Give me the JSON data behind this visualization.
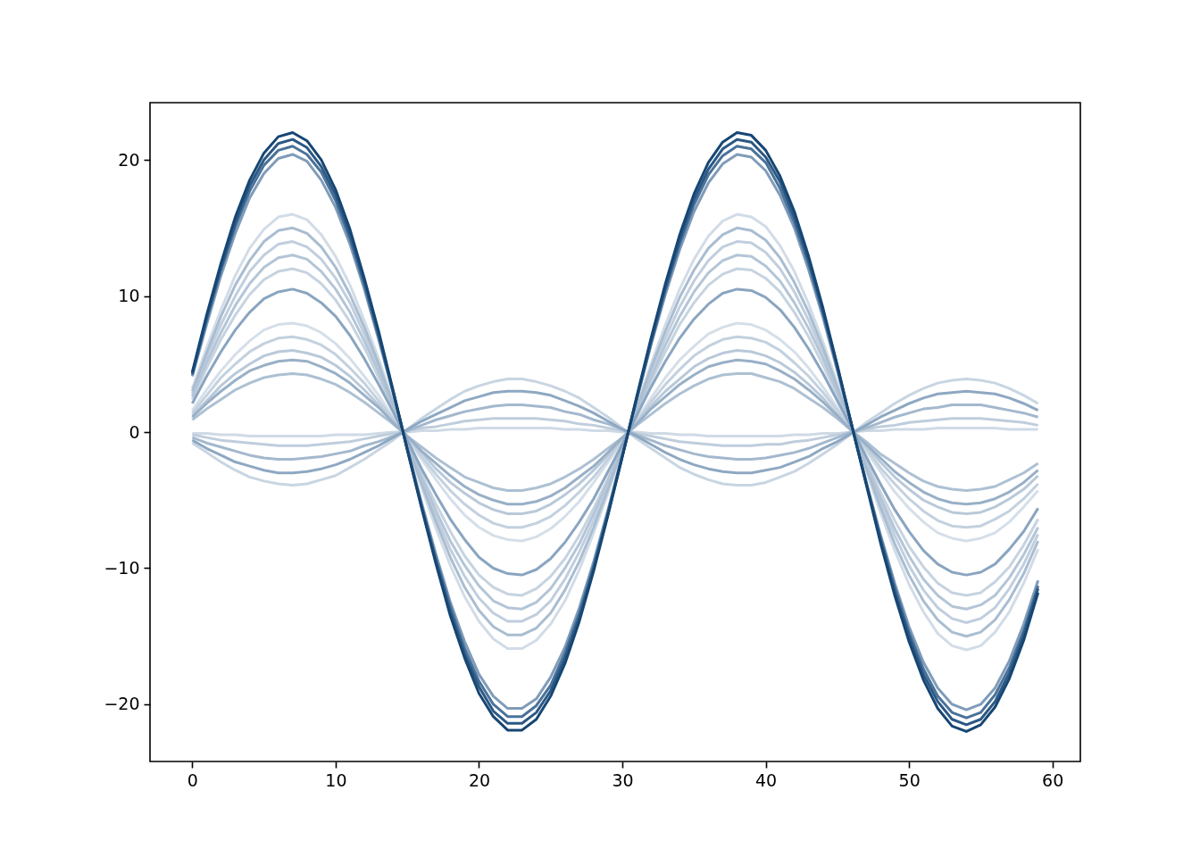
{
  "chart_data": {
    "type": "line",
    "x": [
      0,
      1,
      2,
      3,
      4,
      5,
      6,
      7,
      8,
      9,
      10,
      11,
      12,
      13,
      14,
      15,
      16,
      17,
      18,
      19,
      20,
      21,
      22,
      23,
      24,
      25,
      26,
      27,
      28,
      29,
      30,
      31,
      32,
      33,
      34,
      35,
      36,
      37,
      38,
      39,
      40,
      41,
      42,
      43,
      44,
      45,
      46,
      47,
      48,
      49,
      50,
      51,
      52,
      53,
      54,
      55,
      56,
      57,
      58,
      59
    ],
    "xlim": [
      -2.95,
      61.95
    ],
    "ylim": [
      -24.2,
      24.2
    ],
    "xticks": [
      0,
      10,
      20,
      30,
      40,
      50,
      60
    ],
    "yticks": [
      -20,
      -10,
      0,
      10,
      20
    ],
    "grid": false,
    "series": [
      {
        "color": "#cfdae5",
        "values": [
          -0.1,
          -0.1,
          -0.2,
          -0.2,
          -0.3,
          -0.3,
          -0.3,
          -0.3,
          -0.3,
          -0.3,
          -0.2,
          -0.2,
          -0.2,
          -0.1,
          0.0,
          0.0,
          0.1,
          0.1,
          0.2,
          0.2,
          0.3,
          0.3,
          0.3,
          0.3,
          0.3,
          0.3,
          0.2,
          0.2,
          0.1,
          0.1,
          0.0,
          0.0,
          -0.1,
          -0.1,
          -0.2,
          -0.2,
          -0.3,
          -0.3,
          -0.3,
          -0.3,
          -0.3,
          -0.3,
          -0.2,
          -0.2,
          -0.1,
          -0.1,
          0.0,
          0.1,
          0.1,
          0.2,
          0.2,
          0.2,
          0.3,
          0.3,
          0.3,
          0.3,
          0.3,
          0.2,
          0.2,
          0.2
        ]
      },
      {
        "color": "#bfcddc",
        "values": [
          -0.2,
          -0.4,
          -0.6,
          -0.7,
          -0.8,
          -0.9,
          -1.0,
          -1.0,
          -1.0,
          -0.9,
          -0.8,
          -0.7,
          -0.5,
          -0.3,
          -0.1,
          0.1,
          0.3,
          0.4,
          0.6,
          0.8,
          0.9,
          1.0,
          1.0,
          1.0,
          1.0,
          0.9,
          0.8,
          0.6,
          0.5,
          0.3,
          0.1,
          -0.1,
          -0.3,
          -0.5,
          -0.7,
          -0.8,
          -0.9,
          -1.0,
          -1.0,
          -1.0,
          -0.9,
          -0.9,
          -0.7,
          -0.6,
          -0.4,
          -0.2,
          0.0,
          0.2,
          0.4,
          0.5,
          0.7,
          0.8,
          0.9,
          1.0,
          1.0,
          1.0,
          0.9,
          0.8,
          0.7,
          0.5
        ]
      },
      {
        "color": "#c8d5e2",
        "values": [
          -0.8,
          -1.5,
          -2.2,
          -2.8,
          -3.3,
          -3.6,
          -3.8,
          -3.9,
          -3.8,
          -3.5,
          -3.2,
          -2.6,
          -2.0,
          -1.3,
          -0.6,
          0.2,
          1.0,
          1.7,
          2.4,
          3.0,
          3.4,
          3.7,
          3.9,
          3.9,
          3.7,
          3.4,
          3.0,
          2.5,
          1.8,
          1.1,
          0.3,
          -0.5,
          -1.2,
          -1.9,
          -2.6,
          -3.1,
          -3.5,
          -3.8,
          -3.9,
          -3.9,
          -3.7,
          -3.3,
          -2.9,
          -2.3,
          -1.6,
          -0.9,
          -0.1,
          0.7,
          1.4,
          2.1,
          2.7,
          3.2,
          3.6,
          3.8,
          3.9,
          3.8,
          3.6,
          3.2,
          2.7,
          2.1
        ]
      },
      {
        "color": "#a3b8cd",
        "values": [
          -0.4,
          -0.8,
          -1.1,
          -1.4,
          -1.7,
          -1.9,
          -2.0,
          -2.0,
          -1.9,
          -1.8,
          -1.6,
          -1.4,
          -1.0,
          -0.7,
          -0.3,
          0.1,
          0.5,
          0.9,
          1.2,
          1.5,
          1.7,
          1.9,
          2.0,
          2.0,
          1.9,
          1.8,
          1.5,
          1.3,
          0.9,
          0.6,
          0.2,
          -0.2,
          -0.6,
          -1.0,
          -1.3,
          -1.6,
          -1.8,
          -1.9,
          -2.0,
          -2.0,
          -1.9,
          -1.7,
          -1.5,
          -1.2,
          -0.8,
          -0.4,
          0.0,
          0.3,
          0.7,
          1.1,
          1.4,
          1.7,
          1.8,
          2.0,
          2.0,
          2.0,
          1.8,
          1.6,
          1.4,
          1.1
        ]
      },
      {
        "color": "#8ea8c2",
        "values": [
          -0.6,
          -1.2,
          -1.7,
          -2.2,
          -2.5,
          -2.8,
          -3.0,
          -3.0,
          -2.9,
          -2.7,
          -2.4,
          -2.0,
          -1.5,
          -1.0,
          -0.4,
          0.2,
          0.8,
          1.3,
          1.8,
          2.3,
          2.6,
          2.9,
          3.0,
          3.0,
          2.9,
          2.7,
          2.3,
          1.9,
          1.4,
          0.8,
          0.2,
          -0.3,
          -0.9,
          -1.5,
          -2.0,
          -2.4,
          -2.7,
          -2.9,
          -3.0,
          -3.0,
          -2.8,
          -2.6,
          -2.2,
          -1.8,
          -1.2,
          -0.7,
          -0.1,
          0.5,
          1.1,
          1.6,
          2.1,
          2.5,
          2.8,
          2.9,
          3.0,
          2.9,
          2.8,
          2.5,
          2.1,
          1.6
        ]
      },
      {
        "color": "#d5dfe9",
        "values": [
          1.6,
          3.1,
          4.5,
          5.7,
          6.7,
          7.5,
          7.9,
          8.0,
          7.8,
          7.3,
          6.5,
          5.4,
          4.1,
          2.7,
          1.1,
          -0.5,
          -2.0,
          -3.5,
          -4.9,
          -6.1,
          -7.0,
          -7.6,
          -7.9,
          -8.0,
          -7.7,
          -7.1,
          -6.2,
          -5.1,
          -3.7,
          -2.2,
          -0.7,
          0.9,
          2.5,
          4.0,
          5.3,
          6.3,
          7.2,
          7.7,
          8.0,
          7.9,
          7.5,
          6.8,
          5.9,
          4.7,
          3.3,
          1.8,
          0.2,
          -1.4,
          -2.9,
          -4.4,
          -5.6,
          -6.6,
          -7.4,
          -7.8,
          -8.0,
          -7.8,
          -7.4,
          -6.6,
          -5.5,
          -4.3
        ]
      },
      {
        "color": "#c3d1df",
        "values": [
          1.4,
          2.7,
          4.0,
          5.0,
          5.9,
          6.5,
          6.9,
          7.0,
          6.8,
          6.4,
          5.7,
          4.7,
          3.6,
          2.3,
          1.0,
          -0.4,
          -1.8,
          -3.1,
          -4.3,
          -5.3,
          -6.1,
          -6.7,
          -7.0,
          -7.0,
          -6.7,
          -6.2,
          -5.4,
          -4.4,
          -3.3,
          -2.0,
          -0.6,
          0.8,
          2.2,
          3.5,
          4.6,
          5.6,
          6.3,
          6.8,
          7.0,
          6.9,
          6.6,
          6.0,
          5.1,
          4.1,
          2.9,
          1.6,
          0.2,
          -1.2,
          -2.6,
          -3.8,
          -4.9,
          -5.8,
          -6.5,
          -6.9,
          -7.0,
          -6.9,
          -6.4,
          -5.8,
          -4.9,
          -3.8
        ]
      },
      {
        "color": "#b9c9d9",
        "values": [
          1.2,
          2.3,
          3.4,
          4.3,
          5.0,
          5.6,
          5.9,
          6.0,
          5.8,
          5.5,
          4.9,
          4.1,
          3.1,
          2.0,
          0.8,
          -0.4,
          -1.5,
          -2.7,
          -3.7,
          -4.5,
          -5.2,
          -5.7,
          -6.0,
          -6.0,
          -5.8,
          -5.3,
          -4.6,
          -3.8,
          -2.8,
          -1.7,
          -0.5,
          0.7,
          1.9,
          3.0,
          3.9,
          4.8,
          5.4,
          5.8,
          6.0,
          5.9,
          5.6,
          5.1,
          4.4,
          3.5,
          2.5,
          1.3,
          0.1,
          -1.0,
          -2.2,
          -3.3,
          -4.2,
          -5.0,
          -5.5,
          -5.9,
          -6.0,
          -5.9,
          -5.5,
          -4.9,
          -4.2,
          -3.2
        ]
      },
      {
        "color": "#adc0d3",
        "values": [
          0.9,
          1.7,
          2.4,
          3.1,
          3.6,
          4.0,
          4.2,
          4.3,
          4.2,
          3.9,
          3.5,
          2.9,
          2.2,
          1.4,
          0.6,
          -0.3,
          -1.1,
          -1.9,
          -2.6,
          -3.3,
          -3.7,
          -4.1,
          -4.3,
          -4.3,
          -4.1,
          -3.8,
          -3.3,
          -2.7,
          -2.0,
          -1.2,
          -0.4,
          0.5,
          1.3,
          2.1,
          2.8,
          3.4,
          3.9,
          4.2,
          4.3,
          4.3,
          4.0,
          3.7,
          3.2,
          2.5,
          1.8,
          1.0,
          0.1,
          -0.7,
          -1.6,
          -2.3,
          -3.0,
          -3.6,
          -4.0,
          -4.2,
          -4.3,
          -4.2,
          -4.0,
          -3.5,
          -3.0,
          -2.3
        ]
      },
      {
        "color": "#98b0c7",
        "values": [
          1.1,
          2.1,
          3.0,
          3.8,
          4.5,
          4.9,
          5.2,
          5.3,
          5.2,
          4.8,
          4.3,
          3.6,
          2.7,
          1.8,
          0.7,
          -0.3,
          -1.4,
          -2.3,
          -3.2,
          -4.0,
          -4.6,
          -5.0,
          -5.3,
          -5.3,
          -5.1,
          -4.7,
          -4.1,
          -3.3,
          -2.5,
          -1.5,
          -0.4,
          0.6,
          1.7,
          2.6,
          3.5,
          4.2,
          4.8,
          5.1,
          5.3,
          5.2,
          5.0,
          4.5,
          3.9,
          3.1,
          2.2,
          1.2,
          0.1,
          -0.9,
          -1.9,
          -2.9,
          -3.7,
          -4.4,
          -4.9,
          -5.2,
          -5.3,
          -5.2,
          -4.9,
          -4.4,
          -3.7,
          -2.8
        ]
      },
      {
        "color": "#d2dce7",
        "values": [
          3.2,
          6.2,
          9.0,
          11.5,
          13.5,
          14.9,
          15.8,
          16.0,
          15.6,
          14.5,
          12.9,
          10.8,
          8.2,
          5.4,
          2.3,
          -0.9,
          -4.1,
          -7.1,
          -9.8,
          -12.1,
          -13.9,
          -15.2,
          -15.9,
          -15.9,
          -15.3,
          -14.1,
          -12.4,
          -10.1,
          -7.4,
          -4.5,
          -1.3,
          1.9,
          5.0,
          7.9,
          10.5,
          12.7,
          14.4,
          15.5,
          16.0,
          15.8,
          15.1,
          13.7,
          11.8,
          9.4,
          6.6,
          3.6,
          0.4,
          -2.8,
          -5.9,
          -8.7,
          -11.2,
          -13.2,
          -14.8,
          -15.7,
          -16.0,
          -15.7,
          -14.7,
          -13.2,
          -11.1,
          -8.6
        ]
      },
      {
        "color": "#c0cede",
        "values": [
          2.8,
          5.5,
          7.9,
          10.0,
          11.8,
          13.0,
          13.8,
          14.0,
          13.6,
          12.7,
          11.3,
          9.5,
          7.2,
          4.7,
          2.0,
          -0.8,
          -3.6,
          -6.2,
          -8.6,
          -10.6,
          -12.2,
          -13.3,
          -13.9,
          -13.9,
          -13.4,
          -12.4,
          -10.8,
          -8.8,
          -6.5,
          -3.9,
          -1.2,
          1.6,
          4.4,
          6.9,
          9.2,
          11.1,
          12.6,
          13.6,
          14.0,
          13.9,
          13.2,
          12.0,
          10.3,
          8.2,
          5.8,
          3.1,
          0.3,
          -2.4,
          -5.1,
          -7.6,
          -9.8,
          -11.6,
          -12.9,
          -13.7,
          -14.0,
          -13.7,
          -12.9,
          -11.5,
          -9.7,
          -7.5
        ]
      },
      {
        "color": "#c6d3e0",
        "values": [
          2.4,
          4.7,
          6.8,
          8.6,
          10.1,
          11.2,
          11.8,
          12.0,
          11.7,
          10.9,
          9.7,
          8.1,
          6.2,
          4.0,
          1.7,
          -0.7,
          -3.1,
          -5.3,
          -7.3,
          -9.1,
          -10.5,
          -11.4,
          -11.9,
          -12.0,
          -11.5,
          -10.6,
          -9.3,
          -7.6,
          -5.6,
          -3.4,
          -1.0,
          1.4,
          3.7,
          5.9,
          7.9,
          9.5,
          10.8,
          11.6,
          12.0,
          11.9,
          11.3,
          10.3,
          8.8,
          7.0,
          4.9,
          2.7,
          0.3,
          -2.1,
          -4.4,
          -6.5,
          -8.4,
          -9.9,
          -11.1,
          -11.8,
          -12.0,
          -11.8,
          -11.0,
          -9.9,
          -8.3,
          -6.4
        ]
      },
      {
        "color": "#b3c5d7",
        "values": [
          2.6,
          5.1,
          7.3,
          9.3,
          10.9,
          12.1,
          12.8,
          13.0,
          12.7,
          11.8,
          10.5,
          8.8,
          6.7,
          4.4,
          1.8,
          -0.8,
          -3.3,
          -5.8,
          -8.0,
          -9.8,
          -11.3,
          -12.4,
          -12.9,
          -13.0,
          -12.5,
          -11.5,
          -10.0,
          -8.2,
          -6.0,
          -3.6,
          -1.1,
          1.5,
          4.0,
          6.4,
          8.5,
          10.3,
          11.7,
          12.6,
          13.0,
          12.9,
          12.2,
          11.1,
          9.5,
          7.6,
          5.4,
          2.9,
          0.3,
          -2.3,
          -4.8,
          -7.1,
          -9.1,
          -10.8,
          -12.0,
          -12.8,
          -13.0,
          -12.7,
          -12.0,
          -10.7,
          -9.0,
          -7.0
        ]
      },
      {
        "color": "#a9bdd1",
        "values": [
          3.0,
          5.8,
          8.5,
          10.8,
          12.6,
          14.0,
          14.8,
          15.0,
          14.6,
          13.6,
          12.1,
          10.1,
          7.7,
          5.0,
          2.1,
          -0.9,
          -3.8,
          -6.6,
          -9.2,
          -11.4,
          -13.1,
          -14.3,
          -14.9,
          -14.9,
          -14.4,
          -13.3,
          -11.6,
          -9.5,
          -7.0,
          -4.2,
          -1.2,
          1.7,
          4.7,
          7.4,
          9.9,
          11.9,
          13.5,
          14.5,
          15.0,
          14.8,
          14.1,
          12.8,
          11.0,
          8.8,
          6.2,
          3.3,
          0.4,
          -2.6,
          -5.5,
          -8.2,
          -10.5,
          -12.4,
          -13.8,
          -14.7,
          -15.0,
          -14.7,
          -13.8,
          -12.3,
          -10.4,
          -8.0
        ]
      },
      {
        "color": "#8aa5c0",
        "values": [
          2.1,
          4.1,
          5.9,
          7.5,
          8.8,
          9.8,
          10.3,
          10.5,
          10.2,
          9.5,
          8.5,
          7.1,
          5.4,
          3.5,
          1.5,
          -0.6,
          -2.7,
          -4.6,
          -6.4,
          -7.9,
          -9.2,
          -10.0,
          -10.4,
          -10.5,
          -10.1,
          -9.3,
          -8.1,
          -6.6,
          -4.9,
          -2.9,
          -0.9,
          1.2,
          3.3,
          5.2,
          6.9,
          8.3,
          9.4,
          10.2,
          10.5,
          10.4,
          9.9,
          9.0,
          7.7,
          6.1,
          4.3,
          2.3,
          0.3,
          -1.8,
          -3.8,
          -5.7,
          -7.3,
          -8.7,
          -9.7,
          -10.3,
          -10.5,
          -10.3,
          -9.7,
          -8.6,
          -7.3,
          -5.6
        ]
      },
      {
        "color": "#7f9cb9",
        "values": [
          4.1,
          7.9,
          11.5,
          14.6,
          17.2,
          19.0,
          20.1,
          20.4,
          19.9,
          18.5,
          16.5,
          13.8,
          10.5,
          6.8,
          2.9,
          -1.2,
          -5.2,
          -9.0,
          -12.5,
          -15.4,
          -17.8,
          -19.4,
          -20.3,
          -20.3,
          -19.6,
          -18.0,
          -15.8,
          -12.9,
          -9.5,
          -5.7,
          -1.7,
          2.4,
          6.4,
          10.1,
          13.4,
          16.2,
          18.3,
          19.7,
          20.4,
          20.2,
          19.2,
          17.4,
          15.0,
          11.9,
          8.4,
          4.5,
          0.5,
          -3.6,
          -7.5,
          -11.1,
          -14.3,
          -16.9,
          -18.8,
          -20.0,
          -20.4,
          -20.0,
          -18.8,
          -16.8,
          -14.1,
          -10.9
        ]
      },
      {
        "color": "#4a729a",
        "values": [
          4.2,
          8.2,
          11.9,
          15.1,
          17.7,
          19.6,
          20.7,
          21.0,
          20.4,
          19.1,
          17.0,
          14.2,
          10.8,
          7.0,
          3.0,
          -1.2,
          -5.4,
          -9.3,
          -12.8,
          -15.9,
          -18.3,
          -20.0,
          -20.9,
          -20.9,
          -20.1,
          -18.6,
          -16.2,
          -13.3,
          -9.8,
          -5.9,
          -1.7,
          2.4,
          6.5,
          10.4,
          13.8,
          16.7,
          18.9,
          20.3,
          21.0,
          20.8,
          19.8,
          17.9,
          15.4,
          12.3,
          8.7,
          4.7,
          0.5,
          -3.7,
          -7.7,
          -11.4,
          -14.7,
          -17.4,
          -19.4,
          -20.6,
          -21.0,
          -20.6,
          -19.3,
          -17.3,
          -14.6,
          -11.3
        ]
      },
      {
        "color": "#2b5884",
        "values": [
          4.3,
          8.4,
          12.1,
          15.4,
          18.1,
          20.0,
          21.2,
          21.5,
          20.9,
          19.5,
          17.4,
          14.5,
          11.1,
          7.2,
          3.0,
          -1.3,
          -5.5,
          -9.5,
          -13.2,
          -16.3,
          -18.7,
          -20.5,
          -21.4,
          -21.4,
          -20.6,
          -19.0,
          -16.6,
          -13.6,
          -10.0,
          -6.0,
          -1.8,
          2.5,
          6.7,
          10.6,
          14.1,
          17.1,
          19.3,
          20.8,
          21.5,
          21.3,
          20.2,
          18.4,
          15.8,
          12.6,
          8.9,
          4.8,
          0.5,
          -3.7,
          -7.9,
          -11.7,
          -15.0,
          -17.8,
          -19.8,
          -21.1,
          -21.5,
          -21.1,
          -19.8,
          -17.7,
          -14.9,
          -11.5
        ]
      },
      {
        "color": "#164673",
        "values": [
          4.4,
          8.6,
          12.4,
          15.8,
          18.5,
          20.5,
          21.7,
          22.0,
          21.4,
          20.0,
          17.8,
          14.9,
          11.3,
          7.4,
          3.1,
          -1.3,
          -5.6,
          -9.7,
          -13.5,
          -16.6,
          -19.2,
          -20.9,
          -21.9,
          -21.9,
          -21.1,
          -19.4,
          -17.0,
          -13.9,
          -10.2,
          -6.1,
          -1.8,
          2.6,
          6.9,
          10.9,
          14.5,
          17.5,
          19.8,
          21.3,
          22.0,
          21.8,
          20.7,
          18.8,
          16.2,
          12.9,
          9.1,
          4.9,
          0.5,
          -3.8,
          -8.1,
          -12.0,
          -15.4,
          -18.2,
          -20.3,
          -21.6,
          -22.0,
          -21.5,
          -20.2,
          -18.1,
          -15.3,
          -11.8
        ]
      }
    ]
  }
}
